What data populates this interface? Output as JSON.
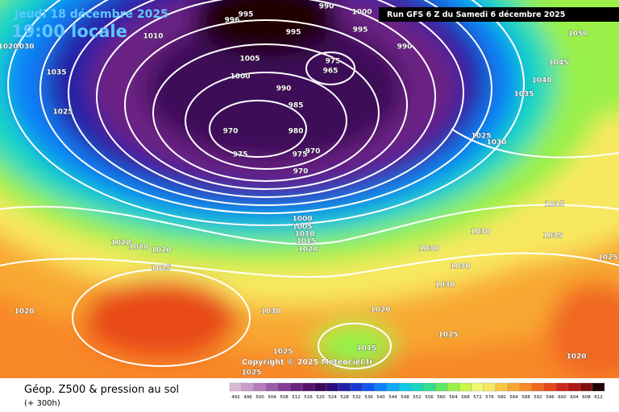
{
  "header": {
    "date": "Jeudi 18 décembre 2025",
    "time": "19:00 locale",
    "run": "Run GFS 6 Z du Samedi 6 décembre 2025"
  },
  "footer": {
    "title": "Géop. Z500 & pression au sol",
    "lead": "(+ 300h)",
    "copyright": "Copyright © 2025 Meteociel.fr"
  },
  "legend": {
    "values": [
      492,
      496,
      500,
      504,
      508,
      512,
      516,
      520,
      524,
      528,
      532,
      536,
      540,
      544,
      548,
      552,
      556,
      560,
      564,
      568,
      572,
      576,
      580,
      584,
      588,
      592,
      596,
      600,
      604,
      608,
      612
    ],
    "colors": [
      "#d8b8d8",
      "#c89ccc",
      "#b47cbc",
      "#9c5cac",
      "#843c98",
      "#6c2484",
      "#58106c",
      "#3c0858",
      "#2c0c7c",
      "#2420a8",
      "#1838d0",
      "#1058f0",
      "#1080f8",
      "#10a8f8",
      "#10c8e8",
      "#18d8c0",
      "#30e090",
      "#60e860",
      "#98f048",
      "#c8f848",
      "#f0f870",
      "#f8e860",
      "#f8c840",
      "#f8a830",
      "#f88828",
      "#f06820",
      "#e84818",
      "#d02818",
      "#b01818",
      "#801010",
      "#200404"
    ]
  },
  "isobars": [
    995,
    990,
    1000,
    995,
    990,
    1050,
    1045,
    1040,
    1035,
    995,
    1005,
    1000,
    975,
    965,
    990,
    985,
    970,
    980,
    975,
    975,
    970,
    970,
    1030,
    1035,
    1025,
    1025,
    1030,
    1035,
    1030,
    1035,
    1025,
    1030,
    1030,
    1030,
    1000,
    1005,
    1010,
    1015,
    1020,
    1020,
    1020,
    1020,
    1025,
    1020,
    1030,
    1020,
    1025,
    1015,
    1025,
    1020,
    1025,
    1010,
    1020,
    996
  ]
}
